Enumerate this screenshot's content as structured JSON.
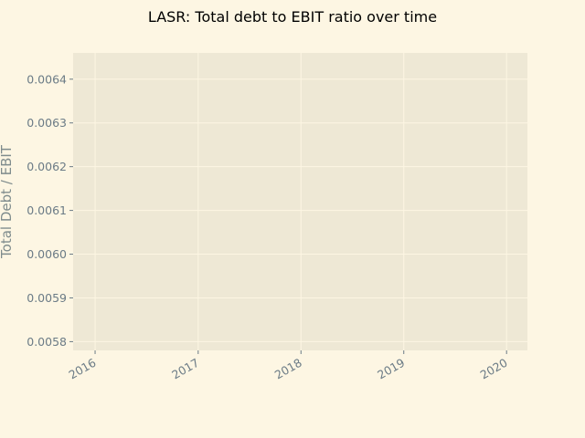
{
  "chart_data": {
    "type": "line",
    "title": "LASR: Total debt to EBIT ratio over time",
    "xlabel": "",
    "ylabel": "Total Debt / EBIT",
    "x_ticks": [
      "2016",
      "2017",
      "2018",
      "2019",
      "2020"
    ],
    "y_ticks": [
      "0.0058",
      "0.0059",
      "0.0060",
      "0.0061",
      "0.0062",
      "0.0063",
      "0.0064"
    ],
    "xlim": [
      "2015-10-15",
      "2020-03-15"
    ],
    "ylim": [
      0.00578,
      0.00646
    ],
    "grid": true,
    "series": []
  },
  "colors": {
    "page_background": "#fdf6e3",
    "plot_background": "#eee8d5",
    "grid": "#fdf6e3",
    "tick_text": "#6b7b86"
  }
}
